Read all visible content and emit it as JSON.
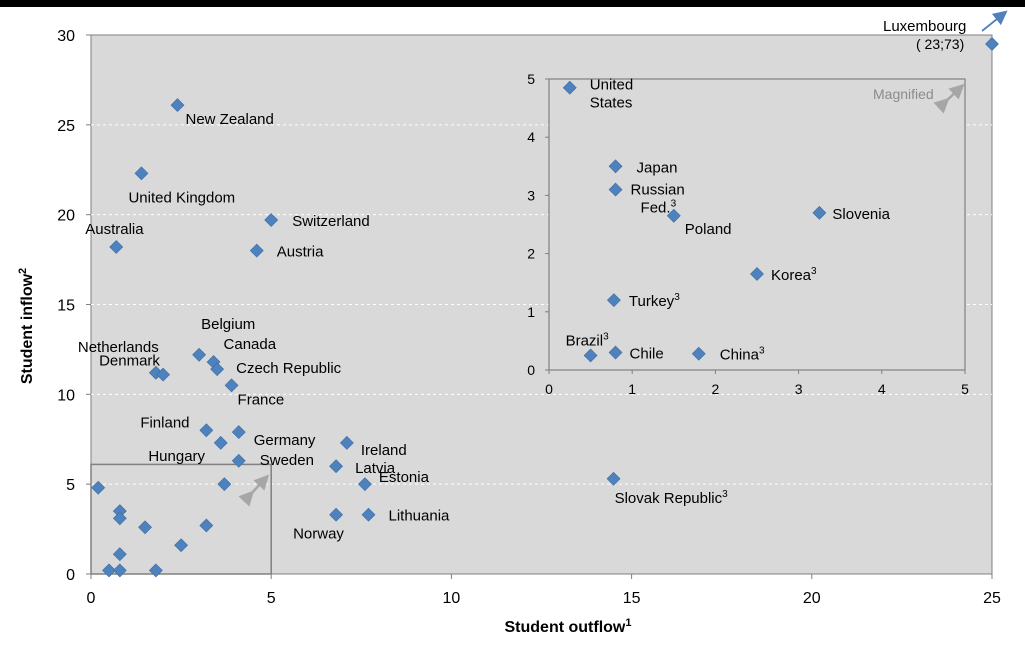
{
  "chart_data": {
    "type": "scatter",
    "xlabel": "Student outflow",
    "xlabel_sup": "1",
    "ylabel": "Student inflow",
    "ylabel_sup": "2",
    "xlim": [
      0,
      25
    ],
    "ylim": [
      0,
      30
    ],
    "xticks": [
      0,
      5,
      10,
      15,
      20,
      25
    ],
    "yticks": [
      0,
      5,
      10,
      15,
      20,
      25,
      30
    ],
    "grid": "horizontal dashed",
    "marker_color": "#4f81bd",
    "plot_bg": "#d9d9d9",
    "points": [
      {
        "label": "New Zealand",
        "x": 2.4,
        "y": 26.1
      },
      {
        "label": "United Kingdom",
        "x": 1.4,
        "y": 22.3
      },
      {
        "label": "Australia",
        "x": 0.7,
        "y": 18.2
      },
      {
        "label": "Switzerland",
        "x": 5.0,
        "y": 19.7
      },
      {
        "label": "Austria",
        "x": 4.6,
        "y": 18.0
      },
      {
        "label": "Belgium",
        "x": 3.0,
        "y": 12.2
      },
      {
        "label": "Canada",
        "x": 3.4,
        "y": 11.8
      },
      {
        "label": "Czech Republic",
        "x": 3.5,
        "y": 11.4
      },
      {
        "label": "France",
        "x": 3.9,
        "y": 10.5
      },
      {
        "label": "Netherlands",
        "x": 1.8,
        "y": 11.2
      },
      {
        "label": "Denmark",
        "x": 2.0,
        "y": 11.1
      },
      {
        "label": "Finland",
        "x": 3.2,
        "y": 8.0
      },
      {
        "label": "Germany",
        "x": 4.1,
        "y": 7.9
      },
      {
        "label": "",
        "x": 3.6,
        "y": 7.3
      },
      {
        "label": "Hungary",
        "x": 3.7,
        "y": 5.0
      },
      {
        "label": "Sweden",
        "x": 4.1,
        "y": 6.3
      },
      {
        "label": "Ireland",
        "x": 7.1,
        "y": 7.3
      },
      {
        "label": "Latvia",
        "x": 6.8,
        "y": 6.0
      },
      {
        "label": "Estonia",
        "x": 7.6,
        "y": 5.0
      },
      {
        "label": "Norway",
        "x": 6.8,
        "y": 3.3
      },
      {
        "label": "Lithuania",
        "x": 7.7,
        "y": 3.3
      },
      {
        "label": "Slovak Republic",
        "label_sup": "3",
        "x": 14.5,
        "y": 5.3
      },
      {
        "label": "Luxembourg",
        "x": 25.0,
        "y": 29.5
      }
    ],
    "small_points": [
      {
        "x": 0.2,
        "y": 4.8
      },
      {
        "x": 0.8,
        "y": 3.5
      },
      {
        "x": 0.8,
        "y": 3.1
      },
      {
        "x": 1.5,
        "y": 2.6
      },
      {
        "x": 3.2,
        "y": 2.7
      },
      {
        "x": 2.5,
        "y": 1.6
      },
      {
        "x": 0.8,
        "y": 1.1
      },
      {
        "x": 0.5,
        "y": 0.2
      },
      {
        "x": 0.8,
        "y": 0.2
      },
      {
        "x": 1.8,
        "y": 0.2
      }
    ],
    "annotations": {
      "luxembourg_value": "( 23;73)",
      "magnified_label": "Magnified"
    },
    "inset": {
      "xlim": [
        0,
        5
      ],
      "ylim": [
        0,
        5
      ],
      "xticks": [
        0,
        1,
        2,
        3,
        4,
        5
      ],
      "yticks": [
        0,
        1,
        2,
        3,
        4,
        5
      ],
      "points": [
        {
          "label": "United States",
          "x": 0.25,
          "y": 4.85
        },
        {
          "label": "Japan",
          "x": 0.8,
          "y": 3.5
        },
        {
          "label": "Russian Fed.",
          "label_sup": "3",
          "x": 0.8,
          "y": 3.1
        },
        {
          "label": "Poland",
          "x": 1.5,
          "y": 2.65
        },
        {
          "label": "Slovenia",
          "x": 3.25,
          "y": 2.7
        },
        {
          "label": "Korea",
          "label_sup": "3",
          "x": 2.5,
          "y": 1.65
        },
        {
          "label": "Turkey",
          "label_sup": "3",
          "x": 0.78,
          "y": 1.2
        },
        {
          "label": "Brazil",
          "label_sup": "3",
          "x": 0.5,
          "y": 0.25
        },
        {
          "label": "Chile",
          "x": 0.8,
          "y": 0.3
        },
        {
          "label": "China",
          "label_sup": "3",
          "x": 1.8,
          "y": 0.28
        }
      ]
    }
  }
}
